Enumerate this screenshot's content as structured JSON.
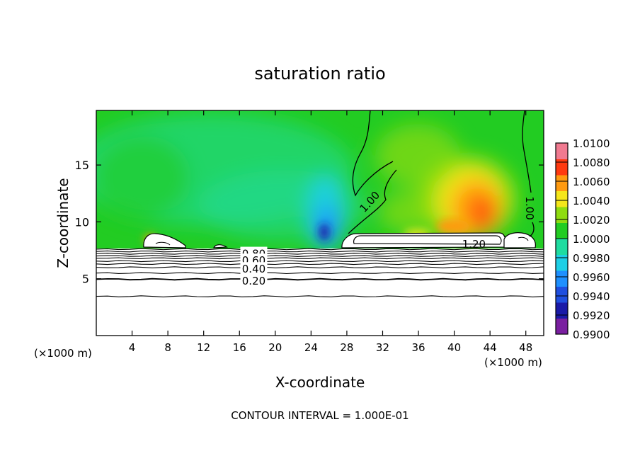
{
  "chart_data": {
    "type": "heatmap",
    "title": "saturation ratio",
    "xlabel": "X-coordinate",
    "ylabel": "Z-coordinate",
    "x_unit": "(×1000 m)",
    "x_unit_right": "(×1000 m)",
    "footer": "CONTOUR INTERVAL = 1.000E-01",
    "xlim": [
      0,
      50
    ],
    "ylim": [
      0,
      19.8
    ],
    "x_ticks": [
      4,
      8,
      12,
      16,
      20,
      24,
      28,
      32,
      36,
      40,
      44,
      48
    ],
    "x_tick_labels": [
      "4",
      "8",
      "12",
      "16",
      "20",
      "24",
      "28",
      "32",
      "36",
      "40",
      "44",
      "48"
    ],
    "y_ticks": [
      5,
      10,
      15
    ],
    "y_tick_labels": [
      "5",
      "10",
      "15"
    ],
    "colorbar": {
      "min": 0.99,
      "max": 1.01,
      "labels": [
        "1.0100",
        "1.0080",
        "1.0060",
        "1.0040",
        "1.0020",
        "1.0000",
        "0.9980",
        "0.9960",
        "0.9940",
        "0.9920",
        "0.9900"
      ],
      "colors": [
        "#7a1fa0",
        "#1a1aa8",
        "#1f4fe0",
        "#1e90ff",
        "#1ecfe6",
        "#1fdca0",
        "#22cc22",
        "#8fdc10",
        "#f5e61a",
        "#ff9a10",
        "#ff3a10",
        "#f07a90"
      ]
    },
    "contour_labels": [
      {
        "text": "1.00",
        "x": 30.5,
        "z": 11.8,
        "angle": -48
      },
      {
        "text": "1.00",
        "x": 48.5,
        "z": 11.2,
        "angle": 90
      },
      {
        "text": "1.20",
        "x": 42.2,
        "z": 8.1,
        "angle": 0
      },
      {
        "text": "0.80",
        "x": 17.6,
        "z": 7.25,
        "angle": 0
      },
      {
        "text": "0.60",
        "x": 17.6,
        "z": 6.65,
        "angle": 0
      },
      {
        "text": "0.40",
        "x": 17.6,
        "z": 5.9,
        "angle": 0
      },
      {
        "text": "0.20",
        "x": 17.6,
        "z": 4.85,
        "angle": 0
      }
    ],
    "contour_lines_z": [
      7.6,
      7.4,
      7.2,
      7.0,
      6.8,
      6.55,
      6.3,
      6.0,
      5.5,
      4.95,
      3.45
    ],
    "grid": false,
    "legend": "colorbar-right"
  }
}
